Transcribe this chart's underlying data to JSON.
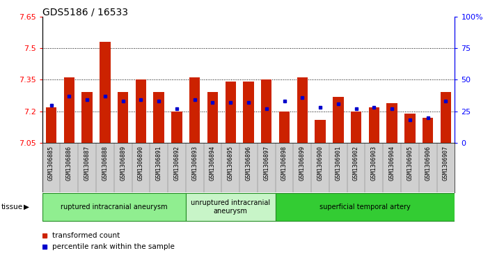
{
  "title": "GDS5186 / 16533",
  "samples": [
    "GSM1306885",
    "GSM1306886",
    "GSM1306887",
    "GSM1306888",
    "GSM1306889",
    "GSM1306890",
    "GSM1306891",
    "GSM1306892",
    "GSM1306893",
    "GSM1306894",
    "GSM1306895",
    "GSM1306896",
    "GSM1306897",
    "GSM1306898",
    "GSM1306899",
    "GSM1306900",
    "GSM1306901",
    "GSM1306902",
    "GSM1306903",
    "GSM1306904",
    "GSM1306905",
    "GSM1306906",
    "GSM1306907"
  ],
  "bar_values": [
    7.22,
    7.36,
    7.29,
    7.53,
    7.29,
    7.35,
    7.29,
    7.2,
    7.36,
    7.29,
    7.34,
    7.34,
    7.35,
    7.2,
    7.36,
    7.16,
    7.27,
    7.2,
    7.22,
    7.24,
    7.19,
    7.17,
    7.29
  ],
  "percentile_values": [
    30,
    37,
    34,
    37,
    33,
    34,
    33,
    27,
    34,
    32,
    32,
    32,
    27,
    33,
    36,
    28,
    31,
    27,
    28,
    27,
    18,
    20,
    33
  ],
  "ymin": 7.05,
  "ymax": 7.65,
  "yticks": [
    7.05,
    7.2,
    7.35,
    7.5,
    7.65
  ],
  "gridlines": [
    7.2,
    7.35,
    7.5
  ],
  "right_yticks": [
    0,
    25,
    50,
    75,
    100
  ],
  "right_ylabels": [
    "0",
    "25",
    "50",
    "75",
    "100%"
  ],
  "groups": [
    {
      "label": "ruptured intracranial aneurysm",
      "start": 0,
      "end": 8,
      "color": "#90EE90"
    },
    {
      "label": "unruptured intracranial\naneurysm",
      "start": 8,
      "end": 13,
      "color": "#c8f5c8"
    },
    {
      "label": "superficial temporal artery",
      "start": 13,
      "end": 23,
      "color": "#33CC33"
    }
  ],
  "bar_color": "#CC2200",
  "marker_color": "#0000CC",
  "plot_bg_color": "#FFFFFF",
  "xticklabel_bg": "#D0D0D0",
  "tissue_label": "tissue",
  "legend_items": [
    {
      "label": "transformed count",
      "color": "#CC2200",
      "marker": "s"
    },
    {
      "label": "percentile rank within the sample",
      "color": "#0000CC",
      "marker": "s"
    }
  ],
  "title_fontsize": 10,
  "bar_label_fontsize": 6,
  "ytick_fontsize": 8,
  "legend_fontsize": 7.5,
  "tissue_fontsize": 7.5,
  "group_label_fontsize": 7
}
